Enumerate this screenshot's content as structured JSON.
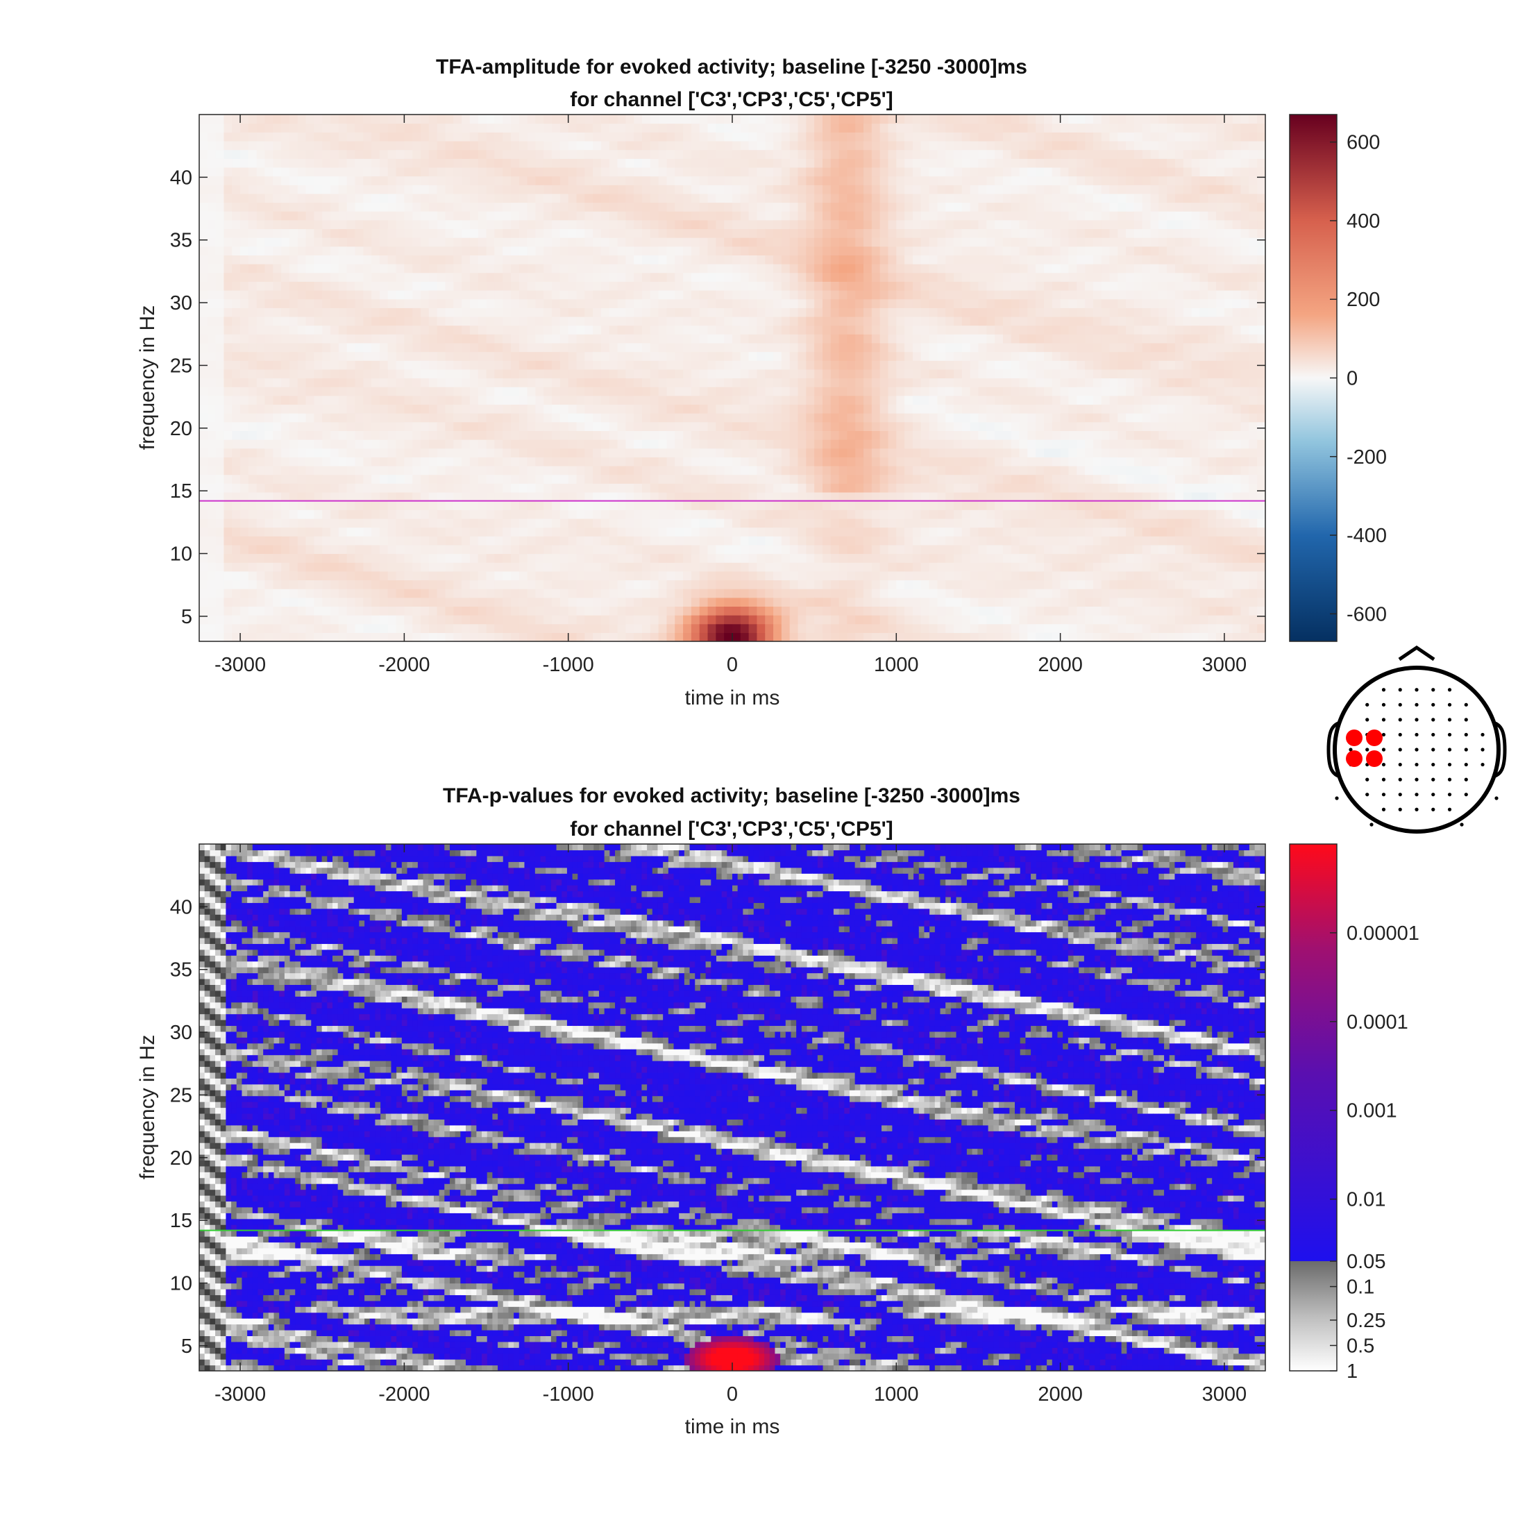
{
  "chart_data": [
    {
      "type": "heatmap",
      "title": "TFA-amplitude for evoked activity; baseline [-3250 -3000]ms",
      "subtitle": "for channel ['C3','CP3','C5','CP5']",
      "xlabel": "time in ms",
      "ylabel": "frequency in Hz",
      "xlim": [
        -3250,
        3250
      ],
      "ylim": [
        3,
        45
      ],
      "xticks": [
        -3000,
        -2000,
        -1000,
        0,
        1000,
        2000,
        3000
      ],
      "yticks": [
        5,
        10,
        15,
        20,
        25,
        30,
        35,
        40
      ],
      "reference_line": {
        "frequency": 14.2,
        "color": "#cc33cc"
      },
      "colorbar": {
        "range": [
          -670,
          670
        ],
        "ticks": [
          600,
          400,
          200,
          0,
          -200,
          -400,
          -600
        ],
        "colormap": "blue-white-red (diverging)"
      },
      "features": [
        {
          "label": "peak",
          "time_ms": 0,
          "frequency_hz": 3.5,
          "value": 650
        },
        {
          "label": "ridge",
          "time_ms": 700,
          "frequency_hz": 30,
          "value": 120
        }
      ]
    },
    {
      "type": "heatmap",
      "title": "TFA-p-values for evoked activity; baseline [-3250 -3000]ms",
      "subtitle": "for channel ['C3','CP3','C5','CP5']",
      "xlabel": "time in ms",
      "ylabel": "frequency in Hz",
      "xlim": [
        -3250,
        3250
      ],
      "ylim": [
        3,
        45
      ],
      "xticks": [
        -3000,
        -2000,
        -1000,
        0,
        1000,
        2000,
        3000
      ],
      "yticks": [
        5,
        10,
        15,
        20,
        25,
        30,
        35,
        40
      ],
      "reference_line": {
        "frequency": 14.2,
        "color": "#33cc33"
      },
      "colorbar": {
        "ticks": [
          "0.00001",
          "0.0001",
          "0.001",
          "0.01",
          "0.05",
          "0.1",
          "0.25",
          "0.5",
          "1"
        ],
        "colormap": "red-purple-blue below 0.05, grey-white above"
      },
      "features": [
        {
          "label": "significant",
          "time_ms": 0,
          "frequency_hz": 4,
          "p": 1e-06
        }
      ]
    }
  ],
  "topoplot": {
    "highlighted_channels": [
      "C3",
      "CP3",
      "C5",
      "CP5"
    ],
    "highlight_color": "#ff0000"
  }
}
